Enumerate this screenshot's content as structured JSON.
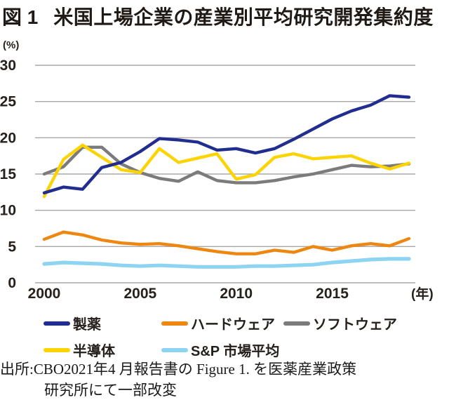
{
  "page": {
    "title_prefix": "図 1",
    "title": "米国上場企業の産業別平均研究開発集約度"
  },
  "chart": {
    "y_unit": "(%)",
    "x_unit": "(年)"
  },
  "chart_data": {
    "type": "line",
    "title": "米国上場企業の産業別平均研究開発集約度",
    "y_unit": "(%)",
    "x_unit": "(年)",
    "grid": "horizontal",
    "legend_position": "bottom",
    "ylim": [
      0,
      30
    ],
    "yticks": [
      0,
      5,
      10,
      15,
      20,
      25,
      30
    ],
    "xticks": [
      2000,
      2005,
      2010,
      2015
    ],
    "x": [
      2000,
      2001,
      2002,
      2003,
      2004,
      2005,
      2006,
      2007,
      2008,
      2009,
      2010,
      2011,
      2012,
      2013,
      2014,
      2015,
      2016,
      2017,
      2018,
      2019
    ],
    "series": [
      {
        "key": "pharma",
        "name": "製薬",
        "color": "#212d8f",
        "width": 4.4,
        "values": [
          12.4,
          13.2,
          12.9,
          15.9,
          16.6,
          18.1,
          19.9,
          19.7,
          19.4,
          18.3,
          18.5,
          17.9,
          18.5,
          19.8,
          21.2,
          22.6,
          23.7,
          24.5,
          25.8,
          25.6
        ]
      },
      {
        "key": "hardware",
        "name": "ハードウェア",
        "color": "#ee8712",
        "width": 4.4,
        "values": [
          6.0,
          7.0,
          6.6,
          5.9,
          5.5,
          5.3,
          5.4,
          5.1,
          4.7,
          4.3,
          4.0,
          4.0,
          4.5,
          4.2,
          5.0,
          4.5,
          5.1,
          5.4,
          5.1,
          6.1
        ]
      },
      {
        "key": "software",
        "name": "ソフトウェア",
        "color": "#7b7b7b",
        "width": 4.4,
        "values": [
          15.0,
          16.0,
          18.7,
          18.7,
          16.4,
          15.2,
          14.4,
          14.0,
          15.3,
          14.1,
          13.8,
          13.8,
          14.1,
          14.6,
          15.0,
          15.6,
          16.2,
          16.0,
          16.1,
          16.4
        ]
      },
      {
        "key": "semiconductor",
        "name": "半導体",
        "color": "#fcd403",
        "width": 4.4,
        "values": [
          11.9,
          17.0,
          19.0,
          17.3,
          15.6,
          15.2,
          18.5,
          16.6,
          17.2,
          17.8,
          14.3,
          14.9,
          17.3,
          17.8,
          17.1,
          17.3,
          17.5,
          16.5,
          15.7,
          16.5
        ]
      },
      {
        "key": "sp-market-average",
        "name": "S&P 市場平均",
        "color": "#8dd3f2",
        "width": 5.2,
        "values": [
          2.6,
          2.8,
          2.7,
          2.6,
          2.4,
          2.3,
          2.4,
          2.3,
          2.2,
          2.2,
          2.2,
          2.3,
          2.3,
          2.4,
          2.5,
          2.8,
          3.0,
          3.2,
          3.3,
          3.3
        ]
      }
    ],
    "draw_order": [
      "software",
      "semiconductor",
      "hardware",
      "sp-market-average",
      "pharma"
    ],
    "legend_order": [
      "pharma",
      "hardware",
      "software",
      "semiconductor",
      "sp-market-average"
    ]
  },
  "source": {
    "line1": "出所:CBO2021年4 月報告書の Figure 1. を医薬産業政策",
    "line2": "研究所にて一部改変"
  }
}
